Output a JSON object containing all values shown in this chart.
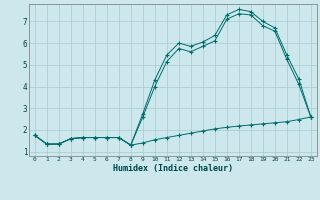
{
  "bg_color": "#cce8ed",
  "grid_color": "#aac8ce",
  "line_color": "#006b6b",
  "xlabel": "Humidex (Indice chaleur)",
  "xlim": [
    -0.5,
    23.5
  ],
  "ylim": [
    0.8,
    7.8
  ],
  "yticks": [
    1,
    2,
    3,
    4,
    5,
    6,
    7
  ],
  "xticks": [
    0,
    1,
    2,
    3,
    4,
    5,
    6,
    7,
    8,
    9,
    10,
    11,
    12,
    13,
    14,
    15,
    16,
    17,
    18,
    19,
    20,
    21,
    22,
    23
  ],
  "series1_x": [
    0,
    1,
    2,
    3,
    4,
    5,
    6,
    7,
    8,
    9,
    10,
    11,
    12,
    13,
    14,
    15,
    16,
    17,
    18,
    19,
    20,
    21,
    22,
    23
  ],
  "series1_y": [
    1.75,
    1.35,
    1.35,
    1.6,
    1.65,
    1.65,
    1.65,
    1.65,
    1.3,
    2.75,
    4.3,
    5.45,
    6.0,
    5.85,
    6.05,
    6.35,
    7.3,
    7.55,
    7.45,
    7.0,
    6.7,
    5.45,
    4.35,
    2.6
  ],
  "series2_x": [
    0,
    1,
    2,
    3,
    4,
    5,
    6,
    7,
    8,
    9,
    10,
    11,
    12,
    13,
    14,
    15,
    16,
    17,
    18,
    19,
    20,
    21,
    22,
    23
  ],
  "series2_y": [
    1.75,
    1.35,
    1.35,
    1.6,
    1.65,
    1.65,
    1.65,
    1.65,
    1.3,
    2.6,
    4.0,
    5.15,
    5.75,
    5.6,
    5.85,
    6.1,
    7.1,
    7.35,
    7.3,
    6.8,
    6.55,
    5.25,
    4.1,
    2.6
  ],
  "series3_x": [
    0,
    1,
    2,
    3,
    4,
    5,
    6,
    7,
    8,
    9,
    10,
    11,
    12,
    13,
    14,
    15,
    16,
    17,
    18,
    19,
    20,
    21,
    22,
    23
  ],
  "series3_y": [
    1.75,
    1.35,
    1.35,
    1.6,
    1.65,
    1.65,
    1.65,
    1.65,
    1.3,
    1.4,
    1.55,
    1.65,
    1.75,
    1.85,
    1.95,
    2.05,
    2.12,
    2.18,
    2.23,
    2.28,
    2.33,
    2.38,
    2.48,
    2.6
  ]
}
